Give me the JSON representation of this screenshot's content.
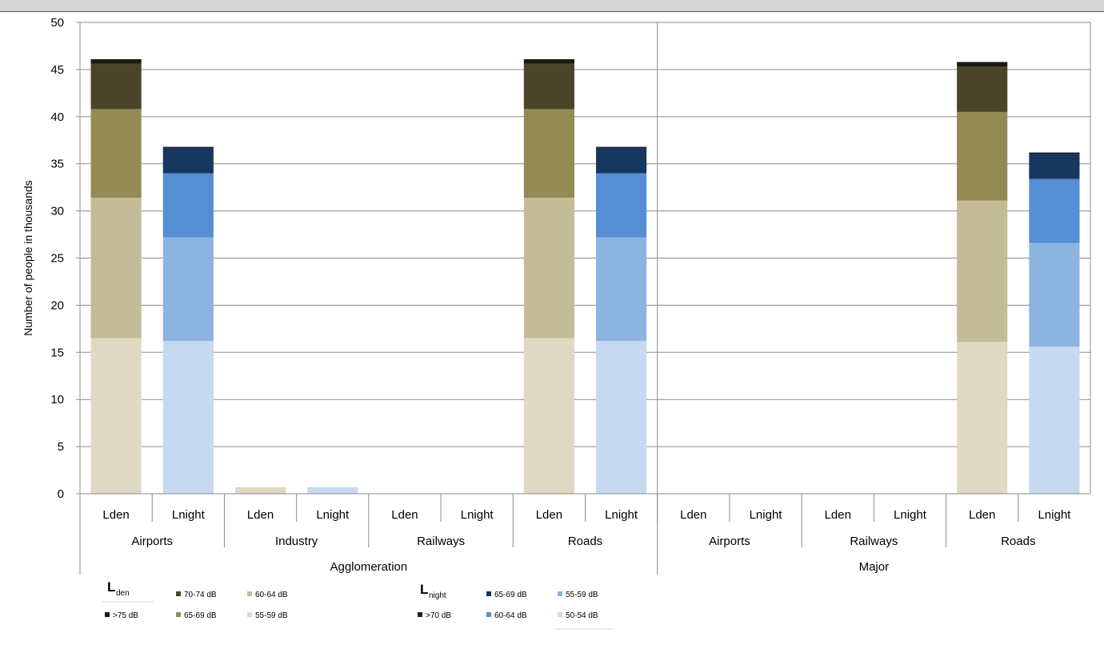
{
  "chart_data": {
    "type": "bar",
    "stacked": true,
    "ylabel": "Number of people in thousands",
    "ylim": [
      0,
      50
    ],
    "yticks": [
      0,
      5,
      10,
      15,
      20,
      25,
      30,
      35,
      40,
      45,
      50
    ],
    "grid": true,
    "groups": [
      {
        "name": "Agglomeration",
        "sources": [
          {
            "name": "Airports",
            "bars": [
              {
                "label": "Lden",
                "metric": "den",
                "values": [
                  16.5,
                  14.9,
                  9.4,
                  4.8,
                  0.5
                ]
              },
              {
                "label": "Lnight",
                "metric": "night",
                "values": [
                  16.2,
                  11.0,
                  6.8,
                  2.6,
                  0.2
                ]
              }
            ]
          },
          {
            "name": "Industry",
            "bars": [
              {
                "label": "Lden",
                "metric": "den",
                "values": [
                  0.7,
                  0,
                  0,
                  0,
                  0
                ]
              },
              {
                "label": "Lnight",
                "metric": "night",
                "values": [
                  0.7,
                  0,
                  0,
                  0,
                  0
                ]
              }
            ]
          },
          {
            "name": "Railways",
            "bars": [
              {
                "label": "Lden",
                "metric": "den",
                "values": [
                  0,
                  0,
                  0,
                  0,
                  0
                ]
              },
              {
                "label": "Lnight",
                "metric": "night",
                "values": [
                  0,
                  0,
                  0,
                  0,
                  0
                ]
              }
            ]
          },
          {
            "name": "Roads",
            "bars": [
              {
                "label": "Lden",
                "metric": "den",
                "values": [
                  16.5,
                  14.9,
                  9.4,
                  4.8,
                  0.5
                ]
              },
              {
                "label": "Lnight",
                "metric": "night",
                "values": [
                  16.2,
                  11.0,
                  6.8,
                  2.6,
                  0.2
                ]
              }
            ]
          }
        ]
      },
      {
        "name": "Major",
        "sources": [
          {
            "name": "Airports",
            "bars": [
              {
                "label": "Lden",
                "metric": "den",
                "values": [
                  0,
                  0,
                  0,
                  0,
                  0
                ]
              },
              {
                "label": "Lnight",
                "metric": "night",
                "values": [
                  0,
                  0,
                  0,
                  0,
                  0
                ]
              }
            ]
          },
          {
            "name": "Railways",
            "bars": [
              {
                "label": "Lden",
                "metric": "den",
                "values": [
                  0,
                  0,
                  0,
                  0,
                  0
                ]
              },
              {
                "label": "Lnight",
                "metric": "night",
                "values": [
                  0,
                  0,
                  0,
                  0,
                  0
                ]
              }
            ]
          },
          {
            "name": "Roads",
            "bars": [
              {
                "label": "Lden",
                "metric": "den",
                "values": [
                  16.1,
                  15.0,
                  9.4,
                  4.8,
                  0.5
                ]
              },
              {
                "label": "Lnight",
                "metric": "night",
                "values": [
                  15.6,
                  11.0,
                  6.8,
                  2.6,
                  0.2
                ]
              }
            ]
          }
        ]
      }
    ],
    "legend": {
      "den": {
        "head": "L",
        "sub": "den",
        "series": [
          {
            "name": "55-59 dB",
            "color": "#dfd9c3"
          },
          {
            "name": "60-64 dB",
            "color": "#c4bc96"
          },
          {
            "name": "65-69 dB",
            "color": "#948a54"
          },
          {
            "name": "70-74 dB",
            "color": "#4a452a"
          },
          {
            "name": ">75 dB",
            "color": "#1d1b10"
          }
        ]
      },
      "night": {
        "head": "L",
        "sub": "night",
        "series": [
          {
            "name": "50-54 dB",
            "color": "#c6d9f1"
          },
          {
            "name": "55-59 dB",
            "color": "#8db3e2"
          },
          {
            "name": "60-64 dB",
            "color": "#558ed5"
          },
          {
            "name": "65-69 dB",
            "color": "#17375e"
          },
          {
            "name": ">70 dB",
            "color": "#0f243e"
          }
        ]
      }
    }
  }
}
